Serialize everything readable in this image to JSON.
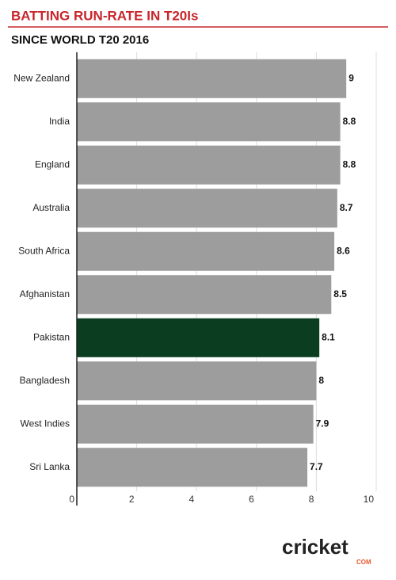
{
  "chart_data": {
    "type": "hbar",
    "title": "BATTING RUN-RATE IN T20Is",
    "subtitle": "SINCE WORLD T20 2016",
    "categories": [
      "New Zealand",
      "India",
      "England",
      "Australia",
      "South Africa",
      "Afghanistan",
      "Pakistan",
      "Bangladesh",
      "West Indies",
      "Sri Lanka"
    ],
    "values": [
      9,
      8.8,
      8.8,
      8.7,
      8.6,
      8.5,
      8.1,
      8,
      7.9,
      7.7
    ],
    "colors": [
      "#9d9d9d",
      "#9d9d9d",
      "#9d9d9d",
      "#9d9d9d",
      "#9d9d9d",
      "#9d9d9d",
      "#0b3d20",
      "#9d9d9d",
      "#9d9d9d",
      "#9d9d9d"
    ],
    "xlim": [
      0,
      10
    ],
    "xticks": [
      0,
      2,
      4,
      6,
      8,
      10
    ],
    "grid": true
  },
  "logo": {
    "main": "cricket",
    "sub": "COM"
  }
}
